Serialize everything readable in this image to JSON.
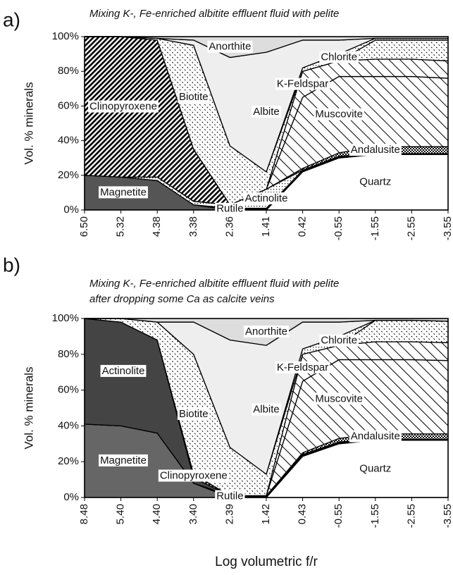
{
  "chart_data": [
    {
      "type": "area",
      "panel": "a)",
      "title": "Mixing K-, Fe-enriched albitite effluent fluid with pelite",
      "y_label": "Vol. % minerals",
      "categories": [
        "6.50",
        "5.32",
        "4.38",
        "3.38",
        "2.36",
        "1.41",
        "0.42",
        "-0.55",
        "-1.55",
        "-2.55",
        "-3.55"
      ],
      "ylim": [
        0,
        100
      ],
      "yticks": [
        {
          "value": 0,
          "label": "0%"
        },
        {
          "value": 20,
          "label": "20%"
        },
        {
          "value": 40,
          "label": "40%"
        },
        {
          "value": 60,
          "label": "60%"
        },
        {
          "value": 80,
          "label": "80%"
        },
        {
          "value": 100,
          "label": "100%"
        }
      ],
      "series": [
        {
          "name": "Magnetite",
          "color": "#555555",
          "values": [
            20,
            19,
            17,
            3,
            0,
            0,
            0,
            0,
            0,
            0,
            0
          ]
        },
        {
          "name": "Quartz",
          "color": "#ffffff",
          "values": [
            0,
            0,
            0,
            0,
            0,
            0,
            22,
            30,
            32,
            32,
            32
          ]
        },
        {
          "name": "Rutile",
          "color": "#000000",
          "values": [
            0,
            0,
            0,
            0,
            1,
            1,
            1,
            1,
            0.5,
            0.5,
            0.5
          ]
        },
        {
          "name": "Actinolite",
          "color": "#ffffff",
          "hatch": "dots",
          "values": [
            0,
            0,
            2,
            2,
            2,
            11,
            0,
            0,
            0,
            0,
            0
          ]
        },
        {
          "name": "Andalusite",
          "color": "#000000",
          "hatch": "checker",
          "values": [
            0,
            0,
            0,
            0,
            0,
            0,
            1,
            2,
            4,
            4,
            4
          ]
        },
        {
          "name": "Clinopyroxene",
          "color": "#000000",
          "hatch": "dense",
          "values": [
            80,
            81,
            79,
            30,
            0,
            0,
            0,
            0,
            0,
            0,
            0
          ]
        },
        {
          "name": "Muscovite",
          "color": "#ffffff",
          "hatch": "sparse",
          "values": [
            0,
            0,
            0,
            0,
            0,
            0,
            41,
            44,
            40.5,
            40.5,
            39.5
          ]
        },
        {
          "name": "K-Feldspar",
          "color": "#ffffff",
          "hatch": "sparse",
          "values": [
            0,
            0,
            0,
            0,
            0,
            0,
            15,
            9,
            10,
            10,
            10
          ]
        },
        {
          "name": "Biotite",
          "color": "#ffffff",
          "hatch": "fine",
          "values": [
            0,
            0,
            1,
            60,
            34,
            10,
            0,
            0,
            11,
            11,
            12
          ]
        },
        {
          "name": "Chlorite",
          "color": "#ffffff",
          "hatch": "dots",
          "values": [
            0,
            0,
            0,
            0,
            0,
            0,
            2,
            4,
            1,
            1,
            1
          ]
        },
        {
          "name": "Albite",
          "color": "#eeeeee",
          "values": [
            0,
            0,
            0,
            3,
            51,
            69,
            16,
            8,
            0,
            0,
            0
          ]
        },
        {
          "name": "Anorthite",
          "color": "#dddddd",
          "values": [
            0,
            0,
            1,
            2,
            12,
            9,
            2,
            2,
            1,
            1,
            1
          ]
        }
      ]
    },
    {
      "type": "area",
      "panel": "b)",
      "title": [
        "Mixing K-, Fe-enriched albitite effluent fluid with pelite",
        "after dropping some Ca as calcite veins"
      ],
      "y_label": "Vol. % minerals",
      "x_label": "Log volumetric f/r",
      "categories": [
        "8.48",
        "5.40",
        "4.40",
        "3.40",
        "2.39",
        "1.42",
        "0.43",
        "-0.55",
        "-1.55",
        "-2.55",
        "-3.55"
      ],
      "ylim": [
        0,
        100
      ],
      "yticks": [
        {
          "value": 0,
          "label": "0%"
        },
        {
          "value": 20,
          "label": "20%"
        },
        {
          "value": 40,
          "label": "40%"
        },
        {
          "value": 60,
          "label": "60%"
        },
        {
          "value": 80,
          "label": "80%"
        },
        {
          "value": 100,
          "label": "100%"
        }
      ],
      "series": [
        {
          "name": "Magnetite",
          "color": "#666666",
          "values": [
            41,
            40,
            36,
            8,
            0,
            0,
            0,
            0,
            0,
            0,
            0
          ]
        },
        {
          "name": "Quartz",
          "color": "#ffffff",
          "values": [
            0,
            0,
            0,
            0,
            0,
            0,
            23,
            30,
            32,
            32,
            32
          ]
        },
        {
          "name": "Rutile",
          "color": "#000000",
          "values": [
            0,
            0,
            0,
            0,
            1,
            1,
            1,
            1,
            0.5,
            0.5,
            0.5
          ]
        },
        {
          "name": "Actinolite",
          "color": "#444444",
          "values": [
            59,
            58,
            52,
            3,
            0,
            0,
            0,
            0,
            0,
            0,
            0
          ]
        },
        {
          "name": "Clinopyroxene",
          "color": "#000000",
          "hatch": "dense",
          "values": [
            0,
            0,
            0,
            2,
            0,
            0,
            0,
            0,
            0,
            0,
            0
          ]
        },
        {
          "name": "Andalusite",
          "color": "#000000",
          "hatch": "checker",
          "values": [
            0,
            0,
            0,
            0,
            0,
            0,
            1,
            2,
            3,
            3,
            3
          ]
        },
        {
          "name": "Muscovite",
          "color": "#ffffff",
          "hatch": "sparse",
          "values": [
            0,
            0,
            0,
            0,
            0,
            0,
            40,
            44,
            41.5,
            41.5,
            41
          ]
        },
        {
          "name": "K-Feldspar",
          "color": "#ffffff",
          "hatch": "sparse",
          "values": [
            0,
            0,
            0,
            0,
            0,
            0,
            15,
            8,
            10,
            10,
            10
          ]
        },
        {
          "name": "Biotite",
          "color": "#ffffff",
          "hatch": "fine",
          "values": [
            0,
            2,
            10,
            67,
            27,
            12,
            0,
            0,
            12,
            12,
            12
          ]
        },
        {
          "name": "Chlorite",
          "color": "#ffffff",
          "hatch": "dots",
          "values": [
            0,
            0,
            0,
            0,
            0,
            0,
            3,
            5,
            0,
            0,
            0
          ]
        },
        {
          "name": "Albite",
          "color": "#eeeeee",
          "values": [
            0,
            0,
            0,
            18,
            60,
            72,
            15,
            8,
            0,
            0,
            0
          ]
        },
        {
          "name": "Anorthite",
          "color": "#dddddd",
          "values": [
            0,
            0,
            2,
            2,
            12,
            15,
            2,
            2,
            1,
            1,
            1.5
          ]
        }
      ]
    }
  ]
}
